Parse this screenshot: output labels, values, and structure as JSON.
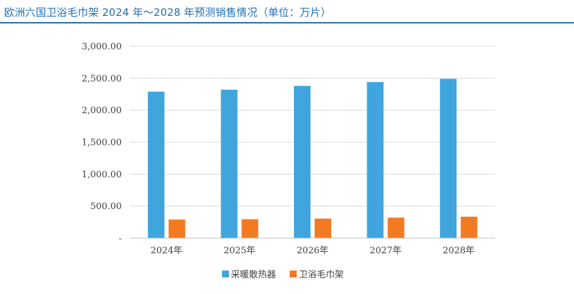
{
  "header": {
    "title": "欧洲六国卫浴毛巾架 2024 年～2028 年预测销售情况（单位：万片）"
  },
  "chart_data": {
    "type": "bar",
    "title": "",
    "xlabel": "",
    "ylabel": "",
    "categories": [
      "2024年",
      "2025年",
      "2026年",
      "2027年",
      "2028年"
    ],
    "ylim": [
      0,
      3000
    ],
    "yticks": [
      0,
      500,
      1000,
      1500,
      2000,
      2500,
      3000
    ],
    "ytick_labels": [
      "-",
      "500.00",
      "1,000.00",
      "1,500.00",
      "2,000.00",
      "2,500.00",
      "3,000.00"
    ],
    "grid": true,
    "legend_position": "bottom",
    "series": [
      {
        "name": "采暖散热器",
        "color": "#3fa5dc",
        "values": [
          2290,
          2320,
          2380,
          2440,
          2490
        ]
      },
      {
        "name": "卫浴毛巾架",
        "color": "#f47a22",
        "values": [
          290,
          295,
          305,
          320,
          335
        ]
      }
    ]
  }
}
